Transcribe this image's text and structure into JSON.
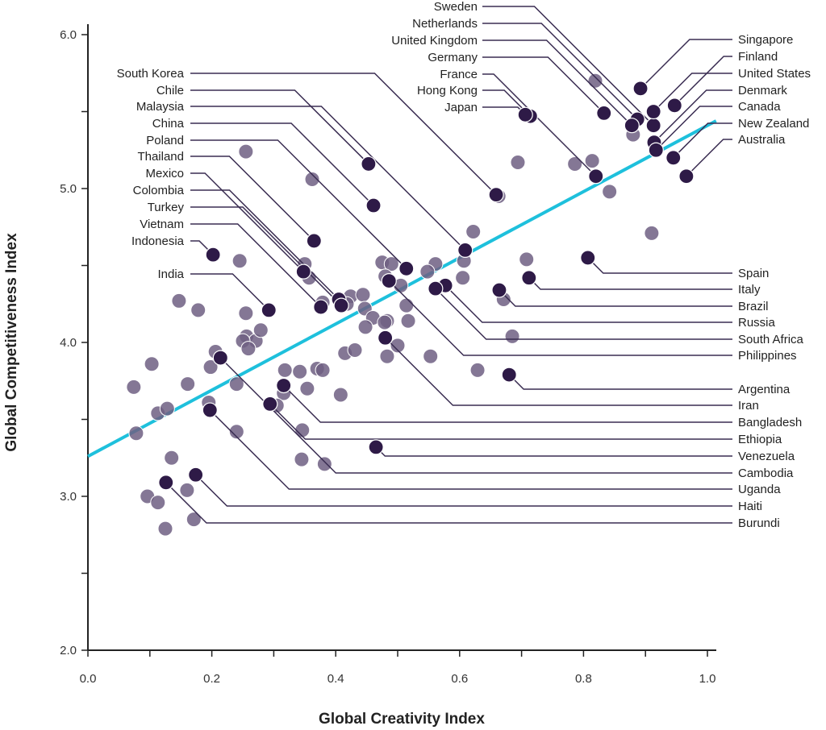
{
  "chart_data": {
    "type": "scatter",
    "title": "",
    "xlabel": "Global Creativity Index",
    "ylabel": "Global Competitiveness Index",
    "xlim": [
      0.0,
      1.0
    ],
    "ylim": [
      2.0,
      6.0
    ],
    "x_ticks": [
      "0.0",
      "0.2",
      "0.4",
      "0.6",
      "0.8",
      "1.0"
    ],
    "y_ticks": [
      "2.0",
      "3.0",
      "4.0",
      "5.0",
      "6.0"
    ],
    "grid": false,
    "colors": {
      "labeled": "#2e1a47",
      "unlabeled": "#6f5f82",
      "trendline": "#1ec0dc",
      "leader": "#3a2d52"
    },
    "trendline": {
      "x": [
        0.0,
        1.014
      ],
      "y": [
        3.26,
        5.44
      ]
    },
    "labeled_points": [
      {
        "name": "Sweden",
        "x": 0.913,
        "y": 5.41
      },
      {
        "name": "Netherlands",
        "x": 0.887,
        "y": 5.45
      },
      {
        "name": "United Kingdom",
        "x": 0.878,
        "y": 5.41
      },
      {
        "name": "Germany",
        "x": 0.833,
        "y": 5.49
      },
      {
        "name": "France",
        "x": 0.82,
        "y": 5.08
      },
      {
        "name": "Hong Kong",
        "x": 0.714,
        "y": 5.47
      },
      {
        "name": "Japan",
        "x": 0.706,
        "y": 5.48
      },
      {
        "name": "Singapore",
        "x": 0.892,
        "y": 5.65
      },
      {
        "name": "Finland",
        "x": 0.947,
        "y": 5.54
      },
      {
        "name": "United States",
        "x": 0.913,
        "y": 5.5
      },
      {
        "name": "Denmark",
        "x": 0.914,
        "y": 5.3
      },
      {
        "name": "Canada",
        "x": 0.917,
        "y": 5.25
      },
      {
        "name": "New Zealand",
        "x": 0.945,
        "y": 5.2
      },
      {
        "name": "Australia",
        "x": 0.966,
        "y": 5.08
      },
      {
        "name": "South Korea",
        "x": 0.659,
        "y": 4.96
      },
      {
        "name": "Chile",
        "x": 0.453,
        "y": 5.16
      },
      {
        "name": "Malaysia",
        "x": 0.609,
        "y": 4.6
      },
      {
        "name": "China",
        "x": 0.461,
        "y": 4.89
      },
      {
        "name": "Poland",
        "x": 0.514,
        "y": 4.48
      },
      {
        "name": "Thailand",
        "x": 0.365,
        "y": 4.66
      },
      {
        "name": "Mexico",
        "x": 0.348,
        "y": 4.46
      },
      {
        "name": "Colombia",
        "x": 0.405,
        "y": 4.28
      },
      {
        "name": "Turkey",
        "x": 0.409,
        "y": 4.24
      },
      {
        "name": "Vietnam",
        "x": 0.376,
        "y": 4.23
      },
      {
        "name": "Indonesia",
        "x": 0.202,
        "y": 4.57
      },
      {
        "name": "India",
        "x": 0.292,
        "y": 4.21
      },
      {
        "name": "Spain",
        "x": 0.807,
        "y": 4.55
      },
      {
        "name": "Italy",
        "x": 0.712,
        "y": 4.42
      },
      {
        "name": "Brazil",
        "x": 0.664,
        "y": 4.34
      },
      {
        "name": "Russia",
        "x": 0.577,
        "y": 4.37
      },
      {
        "name": "South Africa",
        "x": 0.561,
        "y": 4.35
      },
      {
        "name": "Philippines",
        "x": 0.486,
        "y": 4.4
      },
      {
        "name": "Argentina",
        "x": 0.68,
        "y": 3.79
      },
      {
        "name": "Iran",
        "x": 0.48,
        "y": 4.03
      },
      {
        "name": "Bangladesh",
        "x": 0.316,
        "y": 3.72
      },
      {
        "name": "Ethiopia",
        "x": 0.294,
        "y": 3.6
      },
      {
        "name": "Venezuela",
        "x": 0.465,
        "y": 3.32
      },
      {
        "name": "Cambodia",
        "x": 0.214,
        "y": 3.9
      },
      {
        "name": "Uganda",
        "x": 0.197,
        "y": 3.56
      },
      {
        "name": "Haiti",
        "x": 0.174,
        "y": 3.14
      },
      {
        "name": "Burundi",
        "x": 0.126,
        "y": 3.09
      }
    ],
    "unlabeled_points": [
      [
        0.819,
        5.7
      ],
      [
        0.88,
        5.35
      ],
      [
        0.694,
        5.17
      ],
      [
        0.786,
        5.16
      ],
      [
        0.814,
        5.18
      ],
      [
        0.842,
        4.98
      ],
      [
        0.91,
        4.71
      ],
      [
        0.663,
        4.95
      ],
      [
        0.622,
        4.72
      ],
      [
        0.255,
        5.24
      ],
      [
        0.362,
        5.06
      ],
      [
        0.245,
        4.53
      ],
      [
        0.35,
        4.51
      ],
      [
        0.357,
        4.42
      ],
      [
        0.147,
        4.27
      ],
      [
        0.178,
        4.21
      ],
      [
        0.255,
        4.19
      ],
      [
        0.475,
        4.52
      ],
      [
        0.49,
        4.51
      ],
      [
        0.48,
        4.43
      ],
      [
        0.505,
        4.37
      ],
      [
        0.561,
        4.51
      ],
      [
        0.548,
        4.46
      ],
      [
        0.607,
        4.53
      ],
      [
        0.605,
        4.42
      ],
      [
        0.708,
        4.54
      ],
      [
        0.671,
        4.28
      ],
      [
        0.424,
        4.3
      ],
      [
        0.444,
        4.31
      ],
      [
        0.447,
        4.22
      ],
      [
        0.379,
        4.26
      ],
      [
        0.418,
        4.25
      ],
      [
        0.514,
        4.24
      ],
      [
        0.517,
        4.14
      ],
      [
        0.46,
        4.16
      ],
      [
        0.448,
        4.1
      ],
      [
        0.483,
        4.14
      ],
      [
        0.479,
        4.13
      ],
      [
        0.5,
        3.98
      ],
      [
        0.483,
        3.91
      ],
      [
        0.685,
        4.04
      ],
      [
        0.553,
        3.91
      ],
      [
        0.629,
        3.82
      ],
      [
        0.256,
        4.04
      ],
      [
        0.271,
        4.01
      ],
      [
        0.279,
        4.08
      ],
      [
        0.25,
        4.01
      ],
      [
        0.259,
        3.96
      ],
      [
        0.206,
        3.94
      ],
      [
        0.198,
        3.84
      ],
      [
        0.161,
        3.73
      ],
      [
        0.24,
        3.73
      ],
      [
        0.415,
        3.93
      ],
      [
        0.431,
        3.95
      ],
      [
        0.318,
        3.82
      ],
      [
        0.342,
        3.81
      ],
      [
        0.37,
        3.83
      ],
      [
        0.379,
        3.82
      ],
      [
        0.354,
        3.7
      ],
      [
        0.408,
        3.66
      ],
      [
        0.316,
        3.67
      ],
      [
        0.305,
        3.59
      ],
      [
        0.195,
        3.61
      ],
      [
        0.103,
        3.86
      ],
      [
        0.074,
        3.71
      ],
      [
        0.113,
        3.54
      ],
      [
        0.128,
        3.57
      ],
      [
        0.078,
        3.41
      ],
      [
        0.24,
        3.42
      ],
      [
        0.346,
        3.43
      ],
      [
        0.135,
        3.25
      ],
      [
        0.345,
        3.24
      ],
      [
        0.382,
        3.21
      ],
      [
        0.096,
        3.0
      ],
      [
        0.113,
        2.96
      ],
      [
        0.16,
        3.04
      ],
      [
        0.171,
        2.85
      ],
      [
        0.125,
        2.79
      ]
    ]
  }
}
